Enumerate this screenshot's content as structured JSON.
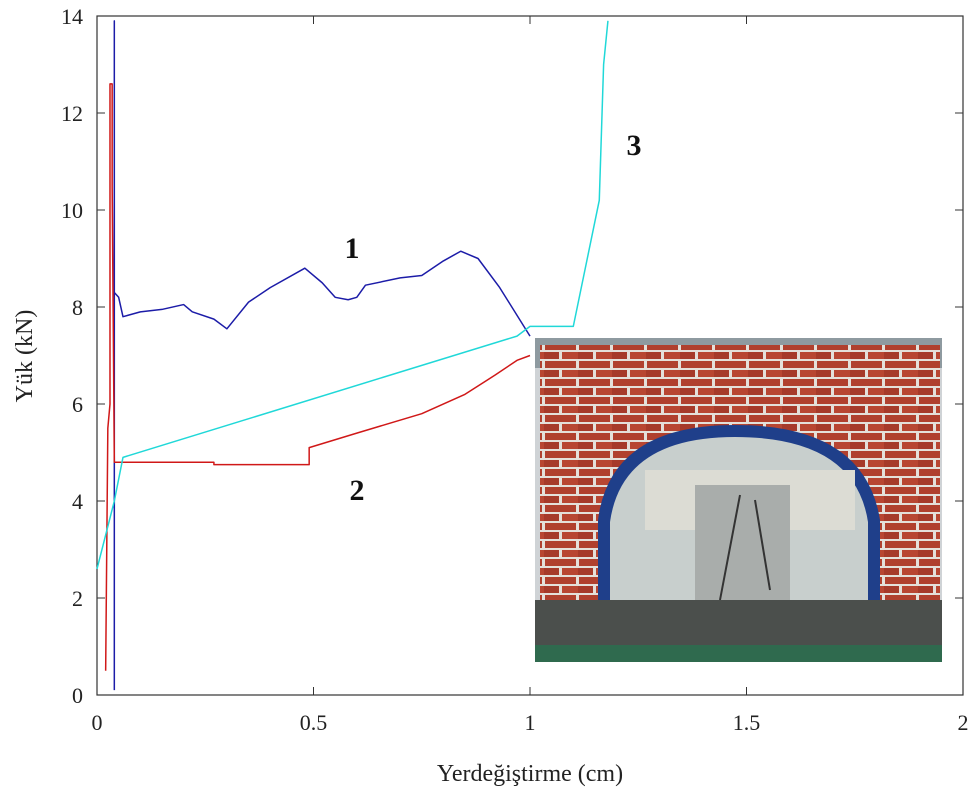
{
  "chart_data": {
    "type": "line",
    "x_label": "Yerdeğiştirme (cm)",
    "y_label": "Yük (kN)",
    "xlim": [
      0,
      2
    ],
    "xticks": [
      0,
      0.5,
      1,
      1.5,
      2
    ],
    "ylim": [
      0,
      14
    ],
    "yticks": [
      0,
      2,
      4,
      6,
      8,
      10,
      12,
      14
    ],
    "grid": false,
    "series": [
      {
        "name": "1",
        "color": "#1c1ca8",
        "x": [
          0.04,
          0.04,
          0.04,
          0.05,
          0.06,
          0.1,
          0.15,
          0.2,
          0.22,
          0.27,
          0.3,
          0.35,
          0.4,
          0.48,
          0.52,
          0.55,
          0.58,
          0.6,
          0.62,
          0.7,
          0.75,
          0.8,
          0.84,
          0.88,
          0.93,
          1.0
        ],
        "values": [
          0.1,
          13.9,
          8.3,
          8.2,
          7.8,
          7.9,
          7.95,
          8.05,
          7.9,
          7.75,
          7.55,
          8.1,
          8.4,
          8.8,
          8.5,
          8.2,
          8.15,
          8.2,
          8.45,
          8.6,
          8.65,
          8.95,
          9.15,
          9.0,
          8.4,
          7.4
        ]
      },
      {
        "name": "2",
        "color": "#d01818",
        "x": [
          0.02,
          0.025,
          0.03,
          0.03,
          0.035,
          0.035,
          0.04,
          0.07,
          0.27,
          0.27,
          0.49,
          0.49,
          0.6,
          0.75,
          0.85,
          0.92,
          0.97,
          1.0
        ],
        "values": [
          0.5,
          5.5,
          6.0,
          12.6,
          12.6,
          10.5,
          4.8,
          4.8,
          4.8,
          4.75,
          4.75,
          5.1,
          5.4,
          5.8,
          6.2,
          6.6,
          6.9,
          7.0
        ]
      },
      {
        "name": "3",
        "color": "#20d8d8",
        "x": [
          0.0,
          0.04,
          0.06,
          0.97,
          1.0,
          1.1,
          1.16,
          1.17,
          1.18
        ],
        "values": [
          2.6,
          4.0,
          4.9,
          7.4,
          7.6,
          7.6,
          10.2,
          13.0,
          13.9
        ]
      }
    ]
  }
}
